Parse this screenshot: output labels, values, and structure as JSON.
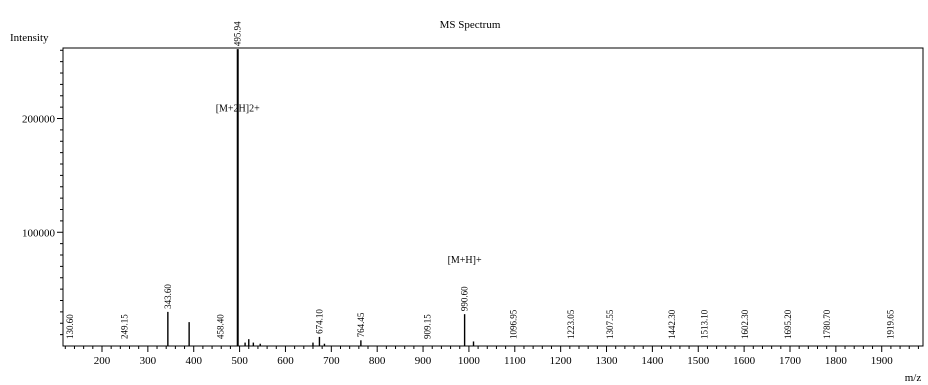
{
  "chart_data": {
    "type": "bar",
    "title": "MS Spectrum",
    "xlabel": "m/z",
    "ylabel": "Intensity",
    "xlim": [
      115,
      1990
    ],
    "ylim": [
      0,
      262000
    ],
    "x_major_ticks": [
      200,
      300,
      400,
      500,
      600,
      700,
      800,
      900,
      1000,
      1100,
      1200,
      1300,
      1400,
      1500,
      1600,
      1700,
      1800,
      1900
    ],
    "x_minor_step": 20,
    "y_major_ticks": [
      100000,
      200000
    ],
    "y_minor_step": 10000,
    "grid": false,
    "series": [
      {
        "points": [
          {
            "x": 130.6,
            "y": 0,
            "label": "130.60"
          },
          {
            "x": 249.15,
            "y": 0,
            "label": "249.15"
          },
          {
            "x": 343.6,
            "y": 30000,
            "label": "343.60"
          },
          {
            "x": 390.0,
            "y": 21000
          },
          {
            "x": 458.4,
            "y": 0,
            "label": "458.40"
          },
          {
            "x": 495.94,
            "y": 261000,
            "label": "495.94"
          },
          {
            "x": 512.0,
            "y": 3000
          },
          {
            "x": 520.0,
            "y": 6000
          },
          {
            "x": 530.0,
            "y": 3000
          },
          {
            "x": 545.0,
            "y": 2000
          },
          {
            "x": 660.0,
            "y": 3000
          },
          {
            "x": 674.1,
            "y": 8000,
            "label": "674.10"
          },
          {
            "x": 685.0,
            "y": 2000
          },
          {
            "x": 764.45,
            "y": 5000,
            "label": "764.45"
          },
          {
            "x": 909.15,
            "y": 0,
            "label": "909.15"
          },
          {
            "x": 990.6,
            "y": 28000,
            "label": "990.60"
          },
          {
            "x": 1010.0,
            "y": 4000
          },
          {
            "x": 1096.95,
            "y": 0,
            "label": "1096.95"
          },
          {
            "x": 1223.05,
            "y": 0,
            "label": "1223.05"
          },
          {
            "x": 1307.55,
            "y": 0,
            "label": "1307.55"
          },
          {
            "x": 1442.3,
            "y": 0,
            "label": "1442.30"
          },
          {
            "x": 1513.1,
            "y": 0,
            "label": "1513.10"
          },
          {
            "x": 1602.3,
            "y": 0,
            "label": "1602.30"
          },
          {
            "x": 1695.2,
            "y": 0,
            "label": "1695.20"
          },
          {
            "x": 1780.7,
            "y": 0,
            "label": "1780.70"
          },
          {
            "x": 1919.65,
            "y": 0,
            "label": "1919.65"
          }
        ]
      }
    ],
    "annotations": [
      {
        "text": "[M+2H]2+",
        "x": 495.94,
        "y": 206000
      },
      {
        "text": "[M+H]+",
        "x": 990.6,
        "y": 73000
      }
    ],
    "colors": {
      "axis": "#000000",
      "peak": "#000000",
      "background": "#ffffff"
    }
  }
}
